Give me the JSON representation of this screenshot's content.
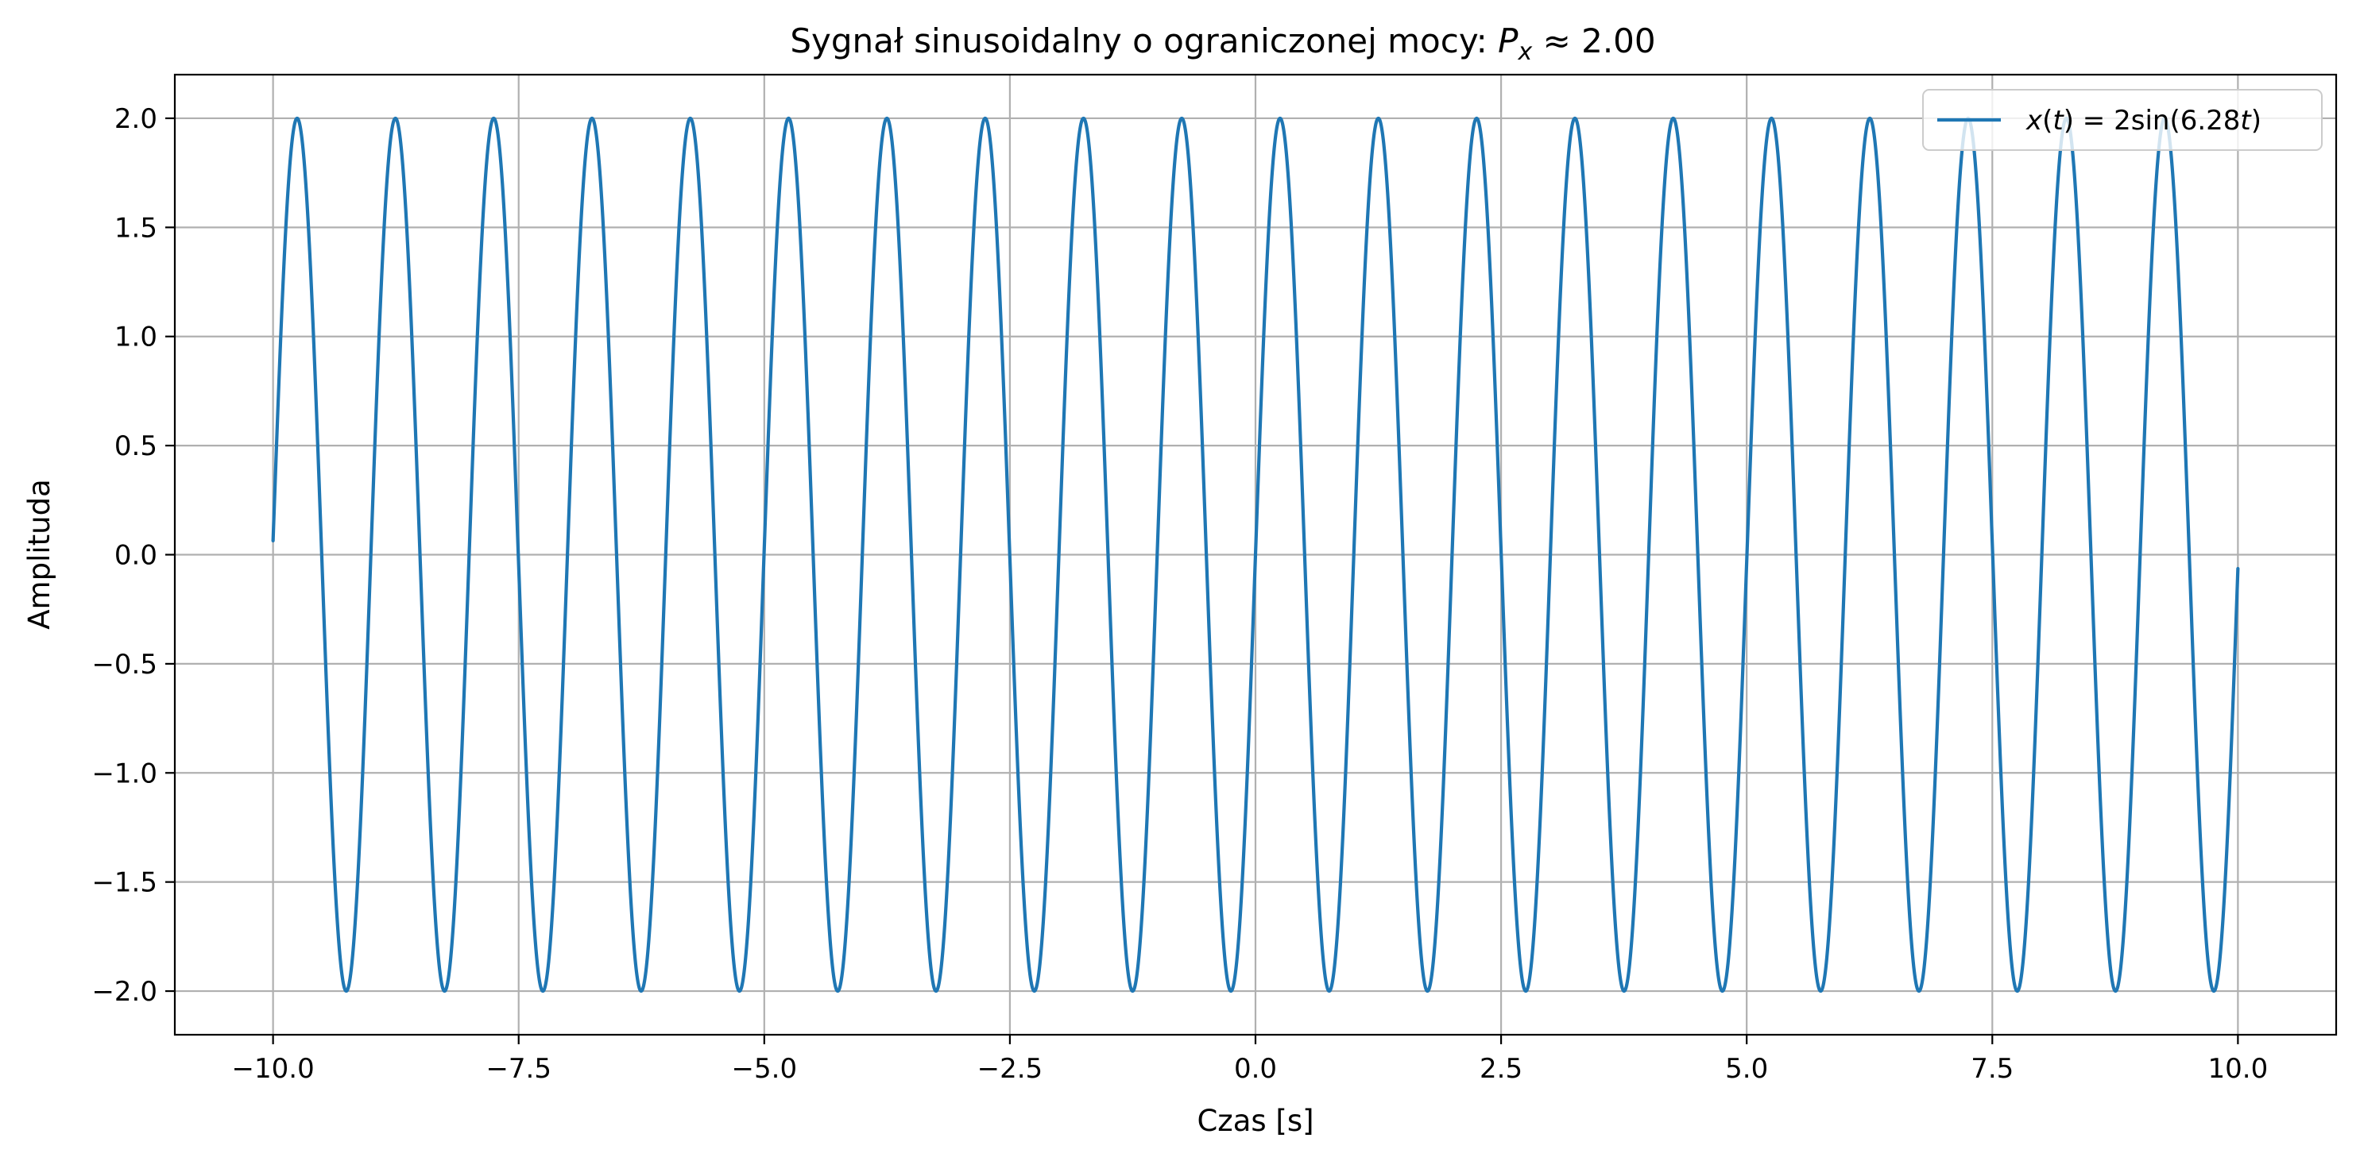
{
  "chart_data": {
    "type": "line",
    "title_main": "Sygnał sinusoidalny o ograniczonej mocy: ",
    "title_symbol": "P",
    "title_subscript": "x",
    "title_value": " ≈ 2.00",
    "xlabel": "Czas [s]",
    "ylabel": "Amplituda",
    "xlim": [
      -11.0,
      11.0
    ],
    "ylim": [
      -2.2,
      2.2
    ],
    "x_ticks": [
      -10.0,
      -7.5,
      -5.0,
      -2.5,
      0.0,
      2.5,
      5.0,
      7.5,
      10.0
    ],
    "x_tick_labels": [
      "−10.0",
      "−7.5",
      "−5.0",
      "−2.5",
      "0.0",
      "2.5",
      "5.0",
      "7.5",
      "10.0"
    ],
    "y_ticks": [
      2.0,
      1.5,
      1.0,
      0.5,
      0.0,
      -0.5,
      -1.0,
      -1.5,
      -2.0
    ],
    "y_tick_labels": [
      "2.0",
      "1.5",
      "1.0",
      "0.5",
      "0.0",
      "−0.5",
      "−1.0",
      "−1.5",
      "−2.0"
    ],
    "grid": true,
    "legend_position": "upper-right",
    "series": [
      {
        "name": "x(t) = 2sin(6.28t)",
        "legend_parts": {
          "lhs_var": "x",
          "lhs_open": "(",
          "lhs_arg": "t",
          "lhs_close": ")",
          "rhs": " = 2sin(6.28",
          "rhs_var": "t",
          "rhs_close": ")"
        },
        "color": "#1f77b4",
        "function": {
          "kind": "sine",
          "amplitude": 2.0,
          "angular_frequency": 6.28,
          "t_start": -10.0,
          "t_end": 10.0,
          "samples": 4001
        }
      }
    ]
  }
}
